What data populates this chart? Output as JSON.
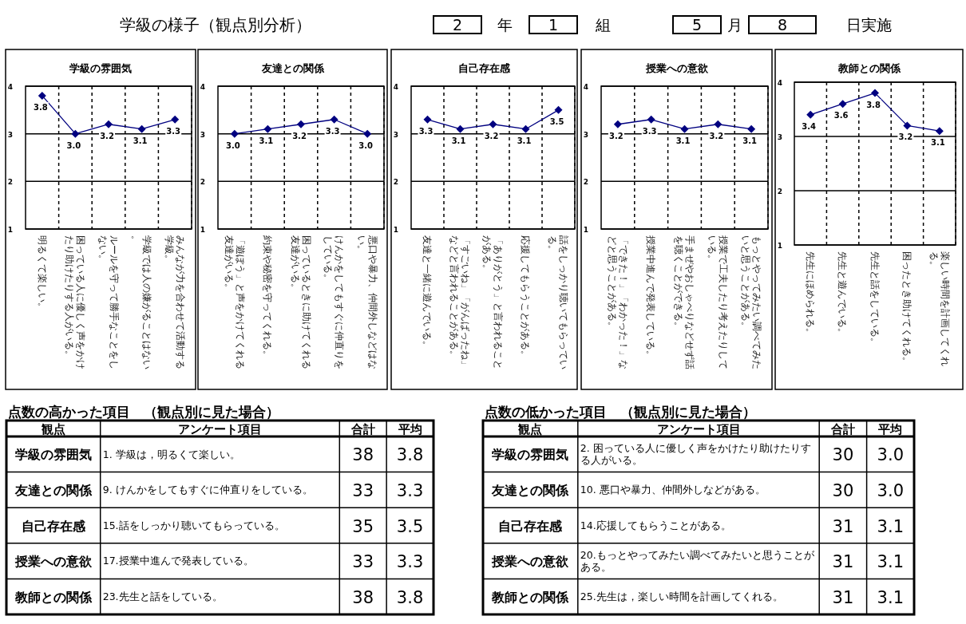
{
  "chart_data": [
    {
      "type": "other",
      "title": "学級の様子（観点別分析）",
      "annotations": [
        "2",
        "年",
        "1",
        "組",
        "5",
        "月",
        "8",
        "日実施"
      ]
    },
    {
      "type": "line",
      "title": "学級の雰囲気",
      "categories": [
        "明るくて楽しい。",
        "困っている人に優しく声をかけたり助けたりする人がいる。",
        "ルールを守って勝手なことをしない。",
        "学級では人の嫌がることはない。",
        "みんなが力を合わせて活動する学級。"
      ],
      "series": [
        {
          "color": "#000080",
          "values": [
            3.8,
            3.0,
            3.2,
            3.1,
            3.3
          ],
          "value_labels": [
            "3.8",
            "3.0",
            "3.2",
            "3.1",
            "3.3"
          ]
        }
      ],
      "ylim": [
        1,
        4
      ],
      "yticks": [
        1,
        2,
        3,
        4
      ],
      "grid": true,
      "marker": "diamond"
    },
    {
      "type": "line",
      "title": "友達との関係",
      "categories": [
        "「遊ぼう」と声をかけてくれる友達がいる。",
        "約束や秘密を守ってくれる。",
        "困っているときに助けてくれる友達がいる。",
        "けんかをしてもすぐに仲直りをしている。",
        "悪口や暴力、仲間外しなどはない。"
      ],
      "series": [
        {
          "color": "#000080",
          "values": [
            3.0,
            3.1,
            3.2,
            3.3,
            3.0
          ],
          "value_labels": [
            "3.0",
            "3.1",
            "3.2",
            "3.3",
            "3.0"
          ]
        }
      ],
      "ylim": [
        1,
        4
      ],
      "yticks": [
        1,
        2,
        3,
        4
      ],
      "grid": true,
      "marker": "diamond"
    },
    {
      "type": "line",
      "title": "自己存在感",
      "categories": [
        "友達と一緒に遊んでいる。",
        "「すごいね」「がんばったね」などと言われることがある。",
        "「ありがとう」と言われることがある。",
        "応援してもらうことがある。",
        "話をしっかり聴いてもらっている。"
      ],
      "series": [
        {
          "color": "#000080",
          "values": [
            3.3,
            3.1,
            3.2,
            3.1,
            3.5
          ],
          "value_labels": [
            "3.3",
            "3.1",
            "3.2",
            "3.1",
            "3.5"
          ]
        }
      ],
      "ylim": [
        1,
        4
      ],
      "yticks": [
        1,
        2,
        3,
        4
      ],
      "grid": true,
      "marker": "diamond"
    },
    {
      "type": "line",
      "title": "授業への意欲",
      "categories": [
        "「できた！」「わかった！」などと思うことがある。",
        "授業中進んで発表している。",
        "手まぜやおしゃべりなどせず話を聴くことができる。",
        "授業で工夫したり考えたりしている。",
        "もっとやってみたい調べてみたいと思うことがある。"
      ],
      "series": [
        {
          "color": "#000080",
          "values": [
            3.2,
            3.3,
            3.1,
            3.2,
            3.1
          ],
          "value_labels": [
            "3.2",
            "3.3",
            "3.1",
            "3.2",
            "3.1"
          ]
        }
      ],
      "ylim": [
        1,
        4
      ],
      "yticks": [
        1,
        2,
        3,
        4
      ],
      "grid": true,
      "marker": "diamond"
    },
    {
      "type": "line",
      "title": "教師との関係",
      "categories": [
        "先生にほめられる。",
        "先生と遊んでいる。",
        "先生と話をしている。",
        "困ったとき助けてくれる。",
        "楽しい時間を計画してくれる。"
      ],
      "series": [
        {
          "color": "#000080",
          "values": [
            3.4,
            3.6,
            3.8,
            3.2,
            3.1
          ],
          "value_labels": [
            "3.4",
            "3.6",
            "3.8",
            "3.2",
            "3.1"
          ]
        }
      ],
      "ylim": [
        1,
        4
      ],
      "yticks": [
        1,
        2,
        3,
        4
      ],
      "grid": true,
      "marker": "diamond"
    },
    {
      "type": "other",
      "title": "点数の高かった項目　（観点別に見た場合）",
      "annotations": [
        "観点",
        "アンケート項目",
        "合計",
        "平均",
        "学級の雰囲気",
        "1. 学級は，明るくて楽しい。",
        "38",
        "3.8",
        "友達との関係",
        "9. けんかをしてもすぐに仲直りをしている。",
        "33",
        "3.3",
        "自己存在感",
        "15.話をしっかり聴いてもらっている。",
        "35",
        "3.5",
        "授業への意欲",
        "17.授業中進んで発表している。",
        "33",
        "3.3",
        "教師との関係",
        "23.先生と話をしている。",
        "38",
        "3.8"
      ]
    },
    {
      "type": "other",
      "title": "点数の低かった項目　（観点別に見た場合）",
      "annotations": [
        "観点",
        "アンケート項目",
        "合計",
        "平均",
        "学級の雰囲気",
        "2. 困っている人に優しく声をかけたり助けたりする人がいる。",
        "30",
        "3.0",
        "友達との関係",
        "10. 悪口や暴力、仲間外しなどがある。",
        "30",
        "3.0",
        "自己存在感",
        "14.応援してもらうことがある。",
        "31",
        "3.1",
        "授業への意欲",
        "20.もっとやってみたい調べてみたいと思うことがある。",
        "31",
        "3.1",
        "教師との関係",
        "25.先生は，楽しい時間を計画してくれる。",
        "31",
        "3.1"
      ]
    }
  ]
}
